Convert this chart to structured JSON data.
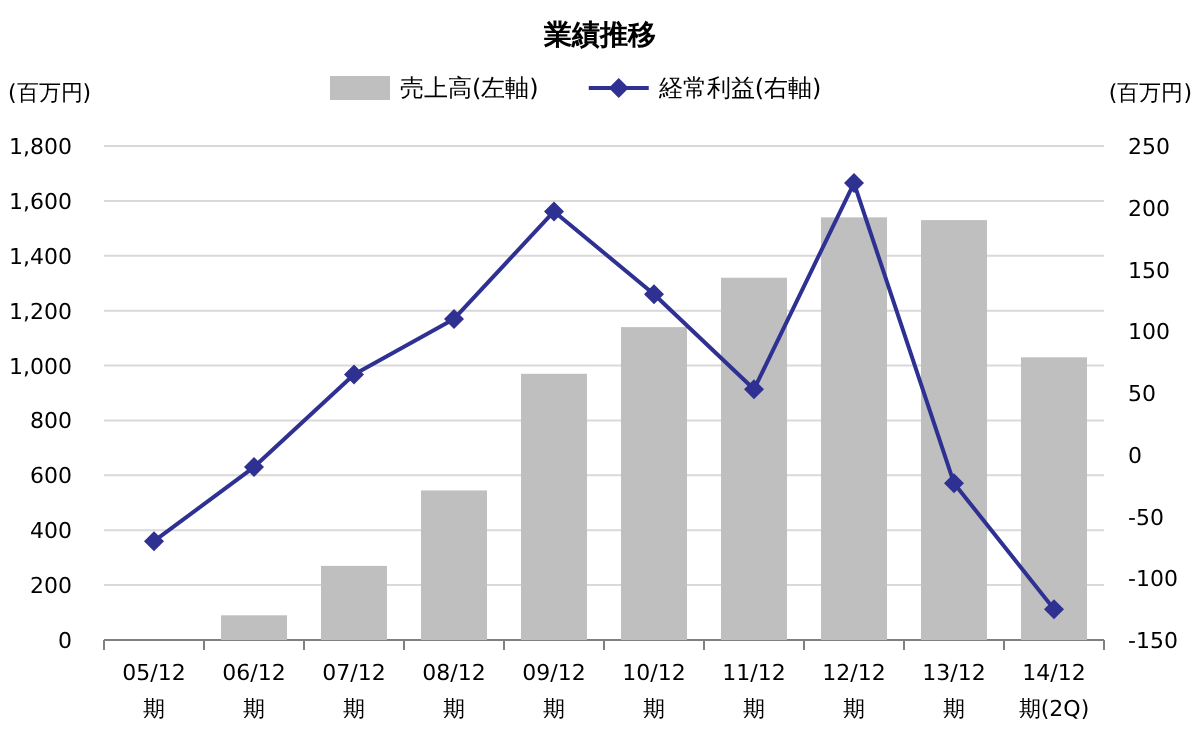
{
  "chart_data": {
    "type": "bar",
    "title": "業績推移",
    "ylabel": "(百万円)",
    "y2label": "(百万円)",
    "categories": [
      "05/12\n期",
      "06/12\n期",
      "07/12\n期",
      "08/12\n期",
      "09/12\n期",
      "10/12\n期",
      "11/12\n期",
      "12/12\n期",
      "13/12\n期",
      "14/12\n期(2Q)"
    ],
    "series": [
      {
        "name": "売上高(左軸)",
        "color": "#bfbfbf",
        "values": [
          null,
          90,
          270,
          545,
          970,
          1140,
          1320,
          1540,
          1530,
          1030
        ]
      },
      {
        "name": "経常利益(右軸)",
        "type": "line",
        "axis": "y2",
        "color": "#2e3192",
        "marker": "diamond",
        "values": [
          -70,
          -10,
          65,
          110,
          197,
          130,
          53,
          220,
          -23,
          -125
        ]
      }
    ],
    "ylim": [
      0,
      1800
    ],
    "yticks": [
      0,
      {
        "value": 200,
        "label": "200"
      },
      {
        "value": 400,
        "label": "400"
      },
      {
        "value": 600,
        "label": "600"
      },
      {
        "value": 800,
        "label": "800"
      },
      {
        "value": 1000,
        "label": "1,000"
      },
      {
        "value": 1200,
        "label": "1,200"
      },
      {
        "value": 1400,
        "label": "1,400"
      },
      {
        "value": 1600,
        "label": "1,600"
      },
      {
        "value": 1800,
        "label": "1,800"
      }
    ],
    "y2lim": [
      -150,
      250
    ],
    "y2ticks": [
      -150,
      -100,
      -50,
      0,
      50,
      100,
      150,
      200,
      250
    ],
    "grid": "y",
    "legend": "top"
  }
}
